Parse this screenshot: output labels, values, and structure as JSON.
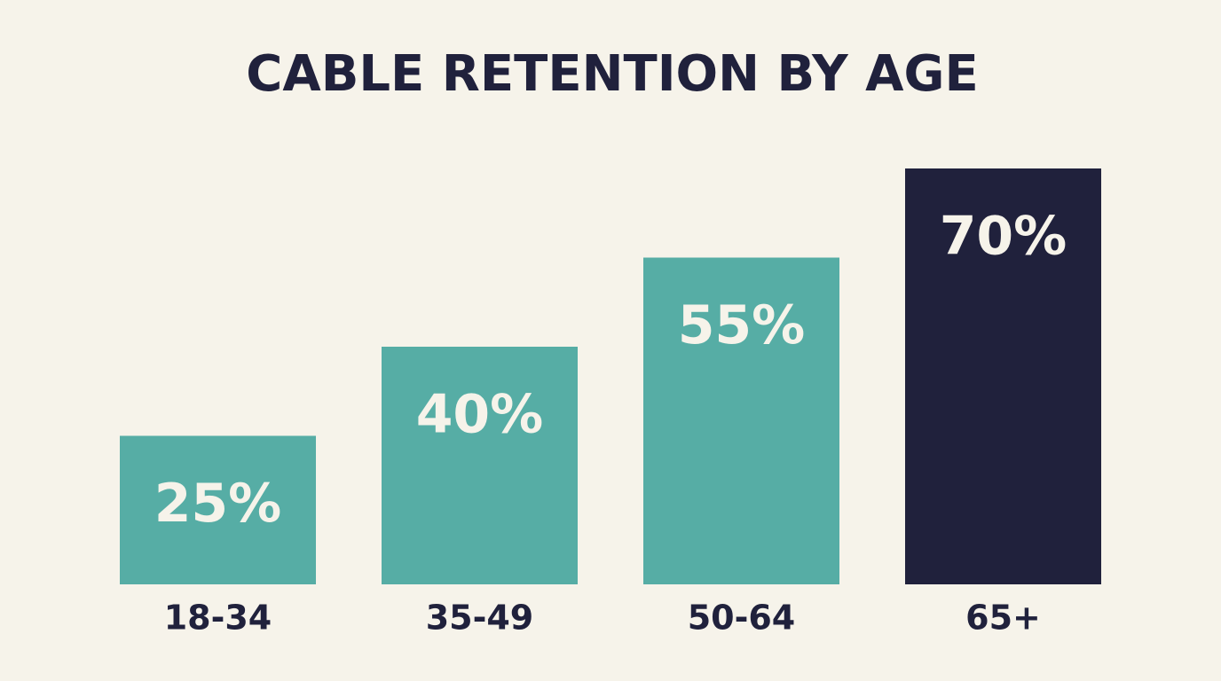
{
  "chart_data": {
    "type": "bar",
    "title": "CABLE RETENTION BY AGE",
    "categories": [
      "18-34",
      "35-49",
      "50-64",
      "65+"
    ],
    "values": [
      25,
      40,
      55,
      70
    ],
    "value_labels": [
      "25%",
      "40%",
      "55%",
      "70%"
    ],
    "colors": [
      "#56ada5",
      "#56ada5",
      "#56ada5",
      "#20213c"
    ]
  }
}
